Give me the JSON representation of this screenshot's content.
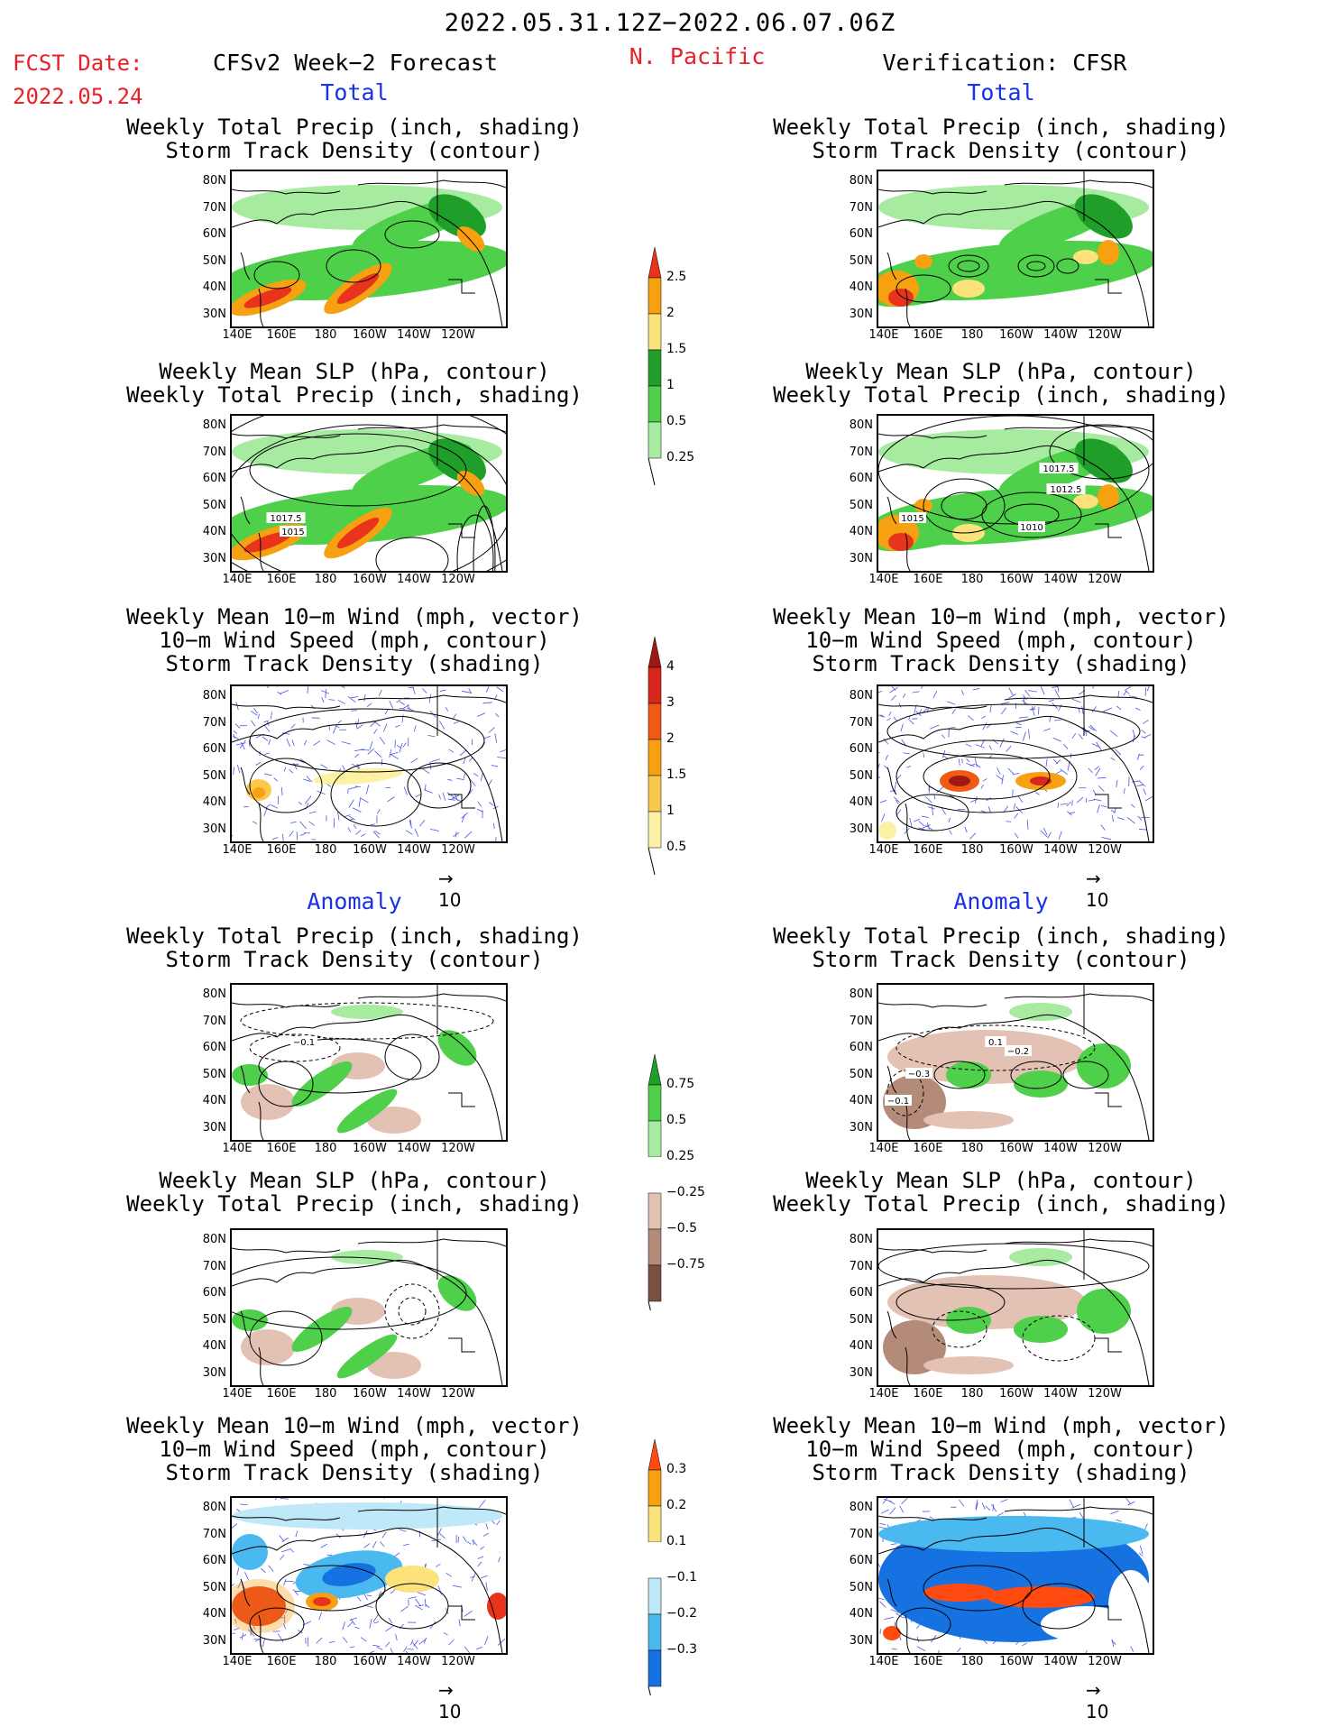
{
  "header": {
    "period": "2022.05.31.12Z−2022.06.07.06Z",
    "fcst_label": "FCST Date:",
    "fcst_date": "2022.05.24",
    "left_title": "CFSv2 Week−2 Forecast",
    "region": "N. Pacific",
    "right_title": "Verification: CFSR"
  },
  "sections": {
    "total": "Total",
    "anomaly": "Anomaly"
  },
  "panel_titles": {
    "precip": [
      "Weekly Total Precip (inch, shading)",
      "Storm Track Density (contour)"
    ],
    "slp": [
      "Weekly Mean SLP (hPa, contour)",
      "Weekly Total Precip (inch, shading)"
    ],
    "wind": [
      "Weekly Mean 10−m Wind (mph, vector)",
      "10−m Wind Speed (mph, contour)",
      "Storm Track Density (shading)"
    ]
  },
  "axes": {
    "lat_ticks": [
      "80N",
      "70N",
      "60N",
      "50N",
      "40N",
      "30N"
    ],
    "lon_ticks": [
      "140E",
      "160E",
      "180",
      "160W",
      "140W",
      "120W"
    ]
  },
  "vector_ref": "10",
  "contour_labels": {
    "fc_slp": [
      "1017.5",
      "1015"
    ],
    "ver_slp": [
      "1017.5",
      "1012.5",
      "1015",
      "1010"
    ],
    "fc_anom_precip": [
      "−0.1"
    ],
    "ver_anom_precip": [
      "0.1",
      "−0.2",
      "−0.3",
      "−0.1"
    ]
  },
  "colorbars": {
    "precip_total": {
      "labels": [
        "2.5",
        "2",
        "1.5",
        "1",
        "0.5",
        "0.25"
      ],
      "colors": [
        "#e8341c",
        "#f7a011",
        "#fbe27a",
        "#1f9e2a",
        "#4fd04a",
        "#a6eba0"
      ]
    },
    "storm_total": {
      "labels": [
        "4",
        "3",
        "2",
        "1.5",
        "1",
        "0.5"
      ],
      "colors": [
        "#a01813",
        "#d9261c",
        "#f05a14",
        "#f7a011",
        "#fbc84e",
        "#fdf1a6"
      ]
    },
    "precip_anom": {
      "labels": [
        "0.75",
        "0.5",
        "0.25",
        "−0.25",
        "−0.5",
        "−0.75"
      ],
      "pos_colors": [
        "#1f9e2a",
        "#4fd04a",
        "#a6eba0"
      ],
      "neg_colors": [
        "#e3c2b4",
        "#b48a78",
        "#7a5040"
      ]
    },
    "storm_anom": {
      "labels": [
        "0.3",
        "0.2",
        "0.1",
        "−0.1",
        "−0.2",
        "−0.3"
      ],
      "pos_colors": [
        "#ff4a10",
        "#f7a011",
        "#fbe27a"
      ],
      "neg_colors": [
        "#bfe8f8",
        "#49b9ef",
        "#1572e0"
      ]
    }
  }
}
